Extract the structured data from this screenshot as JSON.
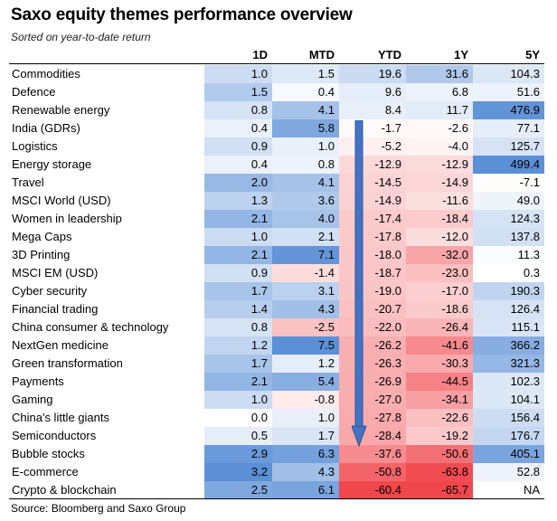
{
  "title": "Saxo equity themes performance overview",
  "subtitle": "Sorted on year-to-date return",
  "source": "Source: Bloomberg and Saxo Group",
  "columns": [
    "1D",
    "MTD",
    "YTD",
    "1Y",
    "5Y"
  ],
  "colors": {
    "positive": "#5b8fd6",
    "negative": "#f0474c"
  },
  "max_abs": [
    3.2,
    7.5,
    60.4,
    65.7,
    499.4
  ],
  "rows": [
    {
      "name": "Commodities",
      "values": [
        "1.0",
        "1.5",
        "19.6",
        "31.6",
        "104.3"
      ]
    },
    {
      "name": "Defence",
      "values": [
        "1.5",
        "0.4",
        "9.6",
        "6.8",
        "51.6"
      ]
    },
    {
      "name": "Renewable energy",
      "values": [
        "0.8",
        "4.1",
        "8.4",
        "11.7",
        "476.9"
      ]
    },
    {
      "name": "India (GDRs)",
      "values": [
        "0.4",
        "5.8",
        "-1.7",
        "-2.6",
        "77.1"
      ]
    },
    {
      "name": "Logistics",
      "values": [
        "0.9",
        "1.0",
        "-5.2",
        "-4.0",
        "125.7"
      ]
    },
    {
      "name": "Energy storage",
      "values": [
        "0.4",
        "0.8",
        "-12.9",
        "-12.9",
        "499.4"
      ]
    },
    {
      "name": "Travel",
      "values": [
        "2.0",
        "4.1",
        "-14.5",
        "-14.9",
        "-7.1"
      ]
    },
    {
      "name": "MSCI World (USD)",
      "values": [
        "1.3",
        "3.6",
        "-14.9",
        "-11.6",
        "49.0"
      ]
    },
    {
      "name": "Women in leadership",
      "values": [
        "2.1",
        "4.0",
        "-17.4",
        "-18.4",
        "124.3"
      ]
    },
    {
      "name": "Mega Caps",
      "values": [
        "1.0",
        "2.1",
        "-17.8",
        "-12.0",
        "137.8"
      ]
    },
    {
      "name": "3D Printing",
      "values": [
        "2.1",
        "7.1",
        "-18.0",
        "-32.0",
        "11.3"
      ]
    },
    {
      "name": "MSCI EM (USD)",
      "values": [
        "0.9",
        "-1.4",
        "-18.7",
        "-23.0",
        "0.3"
      ]
    },
    {
      "name": "Cyber security",
      "values": [
        "1.7",
        "3.1",
        "-19.0",
        "-17.0",
        "190.3"
      ]
    },
    {
      "name": "Financial trading",
      "values": [
        "1.4",
        "4.3",
        "-20.7",
        "-18.6",
        "126.4"
      ]
    },
    {
      "name": "China consumer & technology",
      "values": [
        "0.8",
        "-2.5",
        "-22.0",
        "-26.4",
        "115.1"
      ]
    },
    {
      "name": "NextGen medicine",
      "values": [
        "1.2",
        "7.5",
        "-26.2",
        "-41.6",
        "366.2"
      ]
    },
    {
      "name": "Green transformation",
      "values": [
        "1.7",
        "1.2",
        "-26.3",
        "-30.3",
        "321.3"
      ]
    },
    {
      "name": "Payments",
      "values": [
        "2.1",
        "5.4",
        "-26.9",
        "-44.5",
        "102.3"
      ]
    },
    {
      "name": "Gaming",
      "values": [
        "1.0",
        "-0.8",
        "-27.0",
        "-34.1",
        "104.1"
      ]
    },
    {
      "name": "China's little giants",
      "values": [
        "0.0",
        "1.0",
        "-27.8",
        "-22.6",
        "156.4"
      ]
    },
    {
      "name": "Semiconductors",
      "values": [
        "0.5",
        "1.7",
        "-28.4",
        "-19.2",
        "176.7"
      ]
    },
    {
      "name": "Bubble stocks",
      "values": [
        "2.9",
        "6.3",
        "-37.6",
        "-50.6",
        "405.1"
      ]
    },
    {
      "name": "E-commerce",
      "values": [
        "3.2",
        "4.3",
        "-50.8",
        "-63.8",
        "52.8"
      ]
    },
    {
      "name": "Crypto & blockchain",
      "values": [
        "2.5",
        "6.1",
        "-60.4",
        "-65.7",
        "NA"
      ]
    }
  ]
}
